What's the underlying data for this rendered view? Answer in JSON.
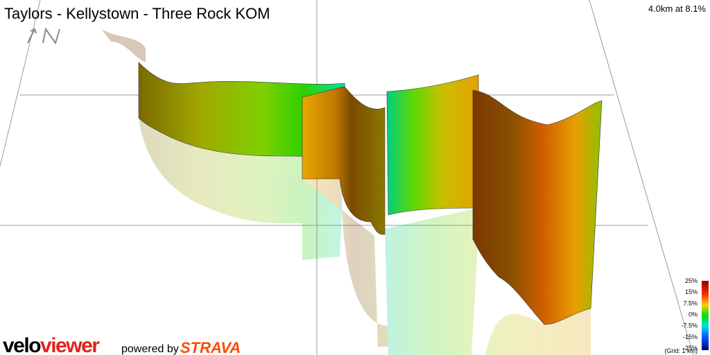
{
  "header": {
    "title": "Taylors - Kellystown - Three Rock KOM",
    "summary": "4.0km at 8.1%"
  },
  "legend": {
    "labels": [
      "25%",
      "15%",
      "7.5%",
      "0%",
      "-7.5%",
      "-15%",
      "-25%"
    ],
    "grid_note": "(Grid: 1 km)"
  },
  "footer": {
    "logo_velo": "velo",
    "logo_viewer": "viewer",
    "powered_by": "powered by",
    "strava": "STRAVA"
  }
}
